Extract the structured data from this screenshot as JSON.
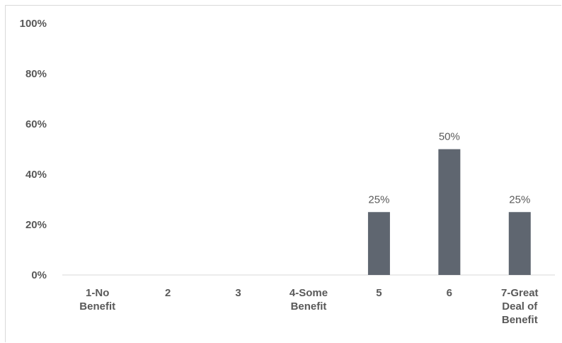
{
  "chart_data": {
    "type": "bar",
    "categories": [
      "1-No Benefit",
      "2",
      "3",
      "4-Some Benefit",
      "5",
      "6",
      "7-Great Deal of Benefit"
    ],
    "category_lines": [
      [
        "1-No",
        "Benefit"
      ],
      [
        "2"
      ],
      [
        "3"
      ],
      [
        "4-Some",
        "Benefit"
      ],
      [
        "5"
      ],
      [
        "6"
      ],
      [
        "7-Great",
        "Deal of",
        "Benefit"
      ]
    ],
    "values": [
      0,
      0,
      0,
      0,
      25,
      50,
      25
    ],
    "data_labels": [
      "",
      "",
      "",
      "",
      "25%",
      "50%",
      "25%"
    ],
    "ylim": [
      0,
      100
    ],
    "yticks": [
      0,
      20,
      40,
      60,
      80,
      100
    ],
    "ytick_labels": [
      "0%",
      "20%",
      "40%",
      "60%",
      "80%",
      "100%"
    ],
    "grid": false,
    "bar_color": "#5f6670",
    "axis_color": "#d9d9d9",
    "text_color": "#595959"
  }
}
